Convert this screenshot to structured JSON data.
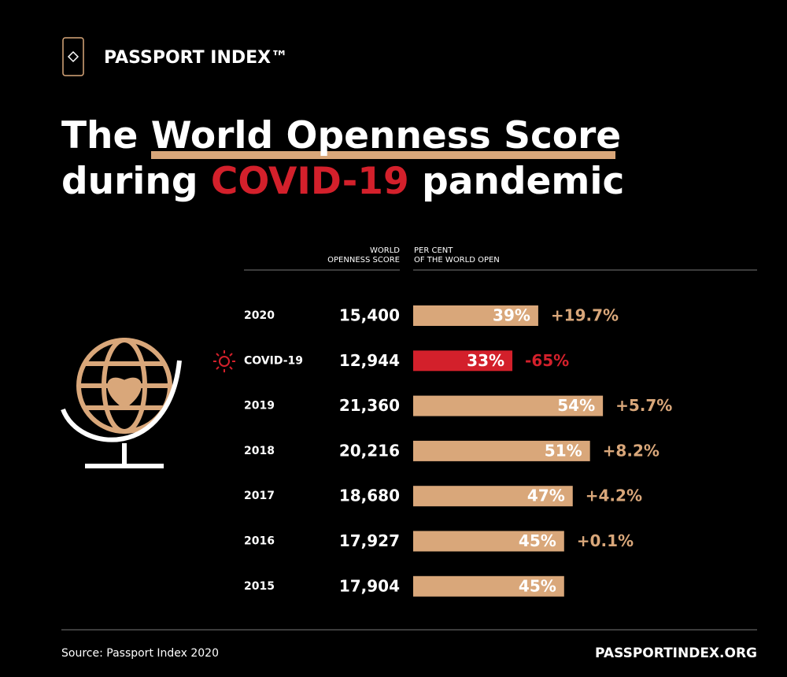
{
  "chart_data": {
    "type": "bar",
    "brand": "PASSPORT INDEX™",
    "title_parts": [
      "The ",
      "World Openness Score",
      "during ",
      "COVID-19",
      " pandemic"
    ],
    "score_header": [
      "WORLD",
      "OPENNESS SCORE"
    ],
    "percent_header": [
      "PER CENT",
      "OF THE WORLD OPEN"
    ],
    "categories": [
      "2020",
      "COVID-19",
      "2019",
      "2018",
      "2017",
      "2016",
      "2015"
    ],
    "scores": [
      {
        "value": 15400,
        "label": "15,400"
      },
      {
        "value": 12944,
        "label": "12,944"
      },
      {
        "value": 21360,
        "label": "21,360"
      },
      {
        "value": 20216,
        "label": "20,216"
      },
      {
        "value": 18680,
        "label": "18,680"
      },
      {
        "value": 17927,
        "label": "17,927"
      },
      {
        "value": 17904,
        "label": "17,904"
      }
    ],
    "values": [
      39,
      33,
      54,
      51,
      47,
      45,
      45
    ],
    "value_labels": [
      "39%",
      "33%",
      "54%",
      "51%",
      "47%",
      "45%",
      "45%"
    ],
    "changes": [
      {
        "value": 19.7,
        "label": "+19.7%"
      },
      {
        "value": -65,
        "label": "-65%"
      },
      {
        "value": 5.7,
        "label": "+5.7%"
      },
      {
        "value": 8.2,
        "label": "+8.2%"
      },
      {
        "value": 4.2,
        "label": "+4.2%"
      },
      {
        "value": 0.1,
        "label": "+0.1%"
      },
      null
    ],
    "colors": [
      "#d9a77a",
      "#d3202b",
      "#d9a77a",
      "#d9a77a",
      "#d9a77a",
      "#d9a77a",
      "#d9a77a"
    ],
    "xlim": [
      10,
      85
    ],
    "source": "Source: Passport Index 2020",
    "site": "PASSPORTINDEX.ORG"
  }
}
